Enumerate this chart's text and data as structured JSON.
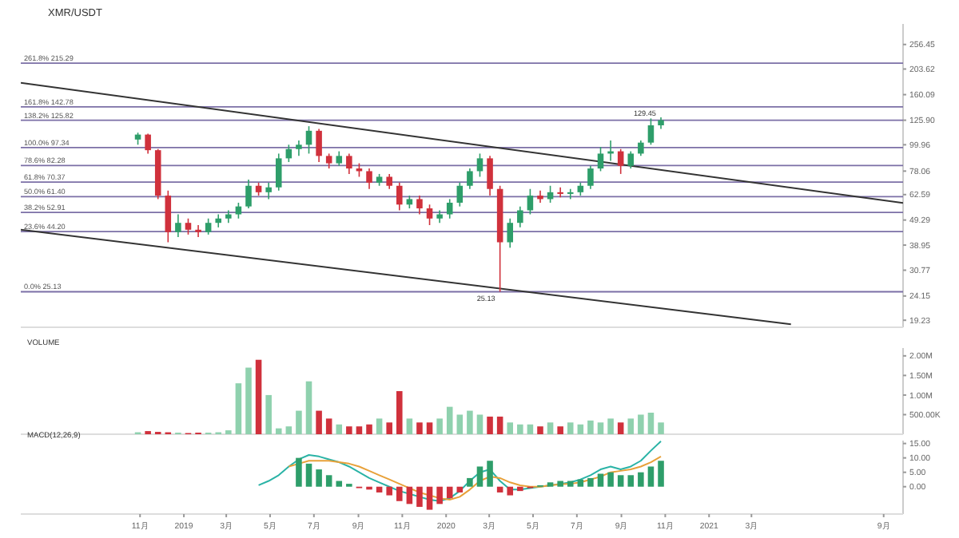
{
  "chart_data": [
    {
      "type": "candlestick",
      "title": "XMR/USDT",
      "log": true,
      "ylim": [
        18,
        311
      ],
      "xlim": [
        "2018-05-19",
        "2021-09-28"
      ],
      "tick_labels": "y",
      "yticks": [
        19.23,
        24.15,
        30.77,
        38.95,
        49.29,
        62.59,
        78.06,
        99.96,
        {
          "value": 125.9,
          "label": "125.90"
        },
        160.09,
        203.62,
        256.45
      ],
      "x": [
        "2018-10-29",
        "2018-11-12",
        "2018-11-26",
        "2018-12-10",
        "2018-12-24",
        "2019-01-07",
        "2019-01-21",
        "2019-02-04",
        "2019-02-18",
        "2019-03-04",
        "2019-03-18",
        "2019-04-01",
        "2019-04-15",
        "2019-04-29",
        "2019-05-13",
        "2019-05-27",
        "2019-06-10",
        "2019-06-24",
        "2019-07-08",
        "2019-07-22",
        "2019-08-05",
        "2019-08-19",
        "2019-09-02",
        "2019-09-16",
        "2019-09-30",
        "2019-10-14",
        "2019-10-28",
        "2019-11-11",
        "2019-11-25",
        "2019-12-09",
        "2019-12-23",
        "2020-01-06",
        "2020-01-20",
        "2020-02-03",
        "2020-02-17",
        "2020-03-02",
        "2020-03-16",
        "2020-03-30",
        "2020-04-13",
        "2020-04-27",
        "2020-05-11",
        "2020-05-25",
        "2020-06-08",
        "2020-06-22",
        "2020-07-06",
        "2020-07-20",
        "2020-08-03",
        "2020-08-17",
        "2020-08-31",
        "2020-09-14",
        "2020-09-28",
        "2020-10-12",
        "2020-10-26"
      ],
      "ohlc": [
        [
          105,
          112,
          100,
          110
        ],
        [
          110,
          111,
          92,
          95
        ],
        [
          95,
          96,
          60,
          62
        ],
        [
          62,
          65,
          40,
          44
        ],
        [
          44,
          52,
          42,
          48
        ],
        [
          48,
          50,
          43,
          45
        ],
        [
          45,
          47,
          42,
          44
        ],
        [
          44,
          50,
          43,
          48
        ],
        [
          48,
          52,
          46,
          50
        ],
        [
          50,
          54,
          48,
          52
        ],
        [
          52,
          58,
          50,
          56
        ],
        [
          56,
          72,
          55,
          68
        ],
        [
          68,
          70,
          62,
          64
        ],
        [
          64,
          70,
          60,
          67
        ],
        [
          67,
          92,
          65,
          88
        ],
        [
          88,
          100,
          85,
          96
        ],
        [
          96,
          104,
          90,
          100
        ],
        [
          100,
          119,
          92,
          114
        ],
        [
          114,
          116,
          85,
          90
        ],
        [
          90,
          92,
          80,
          84
        ],
        [
          84,
          94,
          82,
          90
        ],
        [
          90,
          92,
          76,
          80
        ],
        [
          80,
          84,
          74,
          78
        ],
        [
          78,
          80,
          66,
          70
        ],
        [
          70,
          76,
          68,
          74
        ],
        [
          74,
          76,
          66,
          68
        ],
        [
          68,
          70,
          54,
          57
        ],
        [
          57,
          62,
          55,
          60
        ],
        [
          60,
          62,
          52,
          55
        ],
        [
          55,
          57,
          47,
          50
        ],
        [
          50,
          54,
          48,
          52
        ],
        [
          52,
          60,
          50,
          58
        ],
        [
          58,
          70,
          56,
          68
        ],
        [
          68,
          80,
          66,
          78
        ],
        [
          78,
          92,
          74,
          88
        ],
        [
          88,
          90,
          62,
          66
        ],
        [
          66,
          68,
          25.13,
          40
        ],
        [
          40,
          50,
          38,
          48
        ],
        [
          48,
          56,
          46,
          54
        ],
        [
          54,
          66,
          52,
          62
        ],
        [
          62,
          65,
          58,
          60
        ],
        [
          60,
          68,
          58,
          64
        ],
        [
          64,
          67,
          61,
          63
        ],
        [
          63,
          66,
          60,
          64
        ],
        [
          64,
          70,
          62,
          68
        ],
        [
          68,
          82,
          66,
          80
        ],
        [
          80,
          98,
          78,
          92
        ],
        [
          92,
          104,
          86,
          94
        ],
        [
          94,
          96,
          76,
          82
        ],
        [
          82,
          94,
          80,
          92
        ],
        [
          92,
          104,
          90,
          102
        ],
        [
          102,
          128,
          100,
          120
        ],
        [
          120,
          129.45,
          116,
          125.9
        ]
      ],
      "colors": [
        "#2e9e6a",
        "#d0313c",
        "#d0313c",
        "#d0313c",
        "#2e9e6a",
        "#d0313c",
        "#d0313c",
        "#2e9e6a",
        "#2e9e6a",
        "#2e9e6a",
        "#2e9e6a",
        "#2e9e6a",
        "#d0313c",
        "#2e9e6a",
        "#2e9e6a",
        "#2e9e6a",
        "#2e9e6a",
        "#2e9e6a",
        "#d0313c",
        "#d0313c",
        "#2e9e6a",
        "#d0313c",
        "#d0313c",
        "#d0313c",
        "#2e9e6a",
        "#d0313c",
        "#d0313c",
        "#2e9e6a",
        "#d0313c",
        "#d0313c",
        "#2e9e6a",
        "#2e9e6a",
        "#2e9e6a",
        "#2e9e6a",
        "#2e9e6a",
        "#d0313c",
        "#d0313c",
        "#2e9e6a",
        "#2e9e6a",
        "#2e9e6a",
        "#d0313c",
        "#2e9e6a",
        "#d0313c",
        "#2e9e6a",
        "#2e9e6a",
        "#2e9e6a",
        "#2e9e6a",
        "#2e9e6a",
        "#d0313c",
        "#2e9e6a",
        "#2e9e6a",
        "#2e9e6a",
        "#2e9e6a"
      ],
      "series": [
        {
          "type": "line",
          "x": [
            "2018-05-19",
            "2021-09-28"
          ],
          "values": [
            179,
            57.9
          ],
          "color": "#333333"
        },
        {
          "type": "line",
          "x": [
            "2018-05-19",
            "2021-04-25"
          ],
          "values": [
            45,
            18.5
          ],
          "color": "#333333"
        }
      ],
      "ref_lines": [
        {
          "axis": "y",
          "value": 215.29,
          "label": "261.8% 215.29",
          "color": "#7b6fa6"
        },
        {
          "axis": "y",
          "value": 142.78,
          "label": "161.8% 142.78",
          "color": "#7b6fa6"
        },
        {
          "axis": "y",
          "value": 125.82,
          "label": "138.2% 125.82",
          "color": "#7b6fa6"
        },
        {
          "axis": "y",
          "value": 97.34,
          "label": "100.0% 97.34",
          "color": "#7b6fa6"
        },
        {
          "axis": "y",
          "value": 82.28,
          "label": "78.6% 82.28",
          "color": "#7b6fa6"
        },
        {
          "axis": "y",
          "value": 70.37,
          "label": "61.8% 70.37",
          "color": "#7b6fa6"
        },
        {
          "axis": "y",
          "value": 61.4,
          "label": "50.0% 61.40",
          "color": "#7b6fa6"
        },
        {
          "axis": "y",
          "value": 52.91,
          "label": "38.2% 52.91",
          "color": "#7b6fa6"
        },
        {
          "axis": "y",
          "value": 44.2,
          "label": "23.6% 44.20",
          "color": "#7b6fa6"
        },
        {
          "axis": "y",
          "value": 25.13,
          "label": "0.0% 25.13",
          "color": "#7b6fa6"
        }
      ],
      "annotations": [
        {
          "text": "129.45",
          "x": "2020-10-26",
          "y": 129.45
        },
        {
          "text": "25.13",
          "x": "2020-03-16",
          "y": 25.13
        }
      ]
    },
    {
      "type": "bar",
      "title": "VOLUME",
      "xlim": [
        "2018-05-19",
        "2021-09-28"
      ],
      "tick_labels": "y",
      "ylim": [
        0,
        2200000
      ],
      "yticks": [
        {
          "value": 500000,
          "label": "500.00K"
        },
        {
          "value": 1000000,
          "label": "1.00M"
        },
        {
          "value": 1500000,
          "label": "1.50M"
        },
        {
          "value": 2000000,
          "label": "2.00M"
        }
      ],
      "x": [
        "2018-10-29",
        "2018-11-12",
        "2018-11-26",
        "2018-12-10",
        "2018-12-24",
        "2019-01-07",
        "2019-01-21",
        "2019-02-04",
        "2019-02-18",
        "2019-03-04",
        "2019-03-18",
        "2019-04-01",
        "2019-04-15",
        "2019-04-29",
        "2019-05-13",
        "2019-05-27",
        "2019-06-10",
        "2019-06-24",
        "2019-07-08",
        "2019-07-22",
        "2019-08-05",
        "2019-08-19",
        "2019-09-02",
        "2019-09-16",
        "2019-09-30",
        "2019-10-14",
        "2019-10-28",
        "2019-11-11",
        "2019-11-25",
        "2019-12-09",
        "2019-12-23",
        "2020-01-06",
        "2020-01-20",
        "2020-02-03",
        "2020-02-17",
        "2020-03-02",
        "2020-03-16",
        "2020-03-30",
        "2020-04-13",
        "2020-04-27",
        "2020-05-11",
        "2020-05-25",
        "2020-06-08",
        "2020-06-22",
        "2020-07-06",
        "2020-07-20",
        "2020-08-03",
        "2020-08-17",
        "2020-08-31",
        "2020-09-14",
        "2020-09-28",
        "2020-10-12",
        "2020-10-26"
      ],
      "values": [
        50000,
        80000,
        60000,
        50000,
        40000,
        30000,
        40000,
        40000,
        50000,
        100000,
        1300000,
        1700000,
        1900000,
        1000000,
        150000,
        200000,
        600000,
        1350000,
        600000,
        400000,
        250000,
        200000,
        200000,
        250000,
        400000,
        300000,
        1100000,
        400000,
        300000,
        300000,
        400000,
        700000,
        500000,
        600000,
        500000,
        450000,
        450000,
        300000,
        250000,
        250000,
        200000,
        300000,
        200000,
        300000,
        250000,
        350000,
        300000,
        400000,
        300000,
        400000,
        500000,
        550000,
        300000
      ],
      "colors": [
        "#8fd1ae",
        "#d0313c",
        "#d0313c",
        "#d0313c",
        "#8fd1ae",
        "#d0313c",
        "#d0313c",
        "#8fd1ae",
        "#8fd1ae",
        "#8fd1ae",
        "#8fd1ae",
        "#8fd1ae",
        "#d0313c",
        "#8fd1ae",
        "#8fd1ae",
        "#8fd1ae",
        "#8fd1ae",
        "#8fd1ae",
        "#d0313c",
        "#d0313c",
        "#8fd1ae",
        "#d0313c",
        "#d0313c",
        "#d0313c",
        "#8fd1ae",
        "#d0313c",
        "#d0313c",
        "#8fd1ae",
        "#d0313c",
        "#d0313c",
        "#8fd1ae",
        "#8fd1ae",
        "#8fd1ae",
        "#8fd1ae",
        "#8fd1ae",
        "#d0313c",
        "#d0313c",
        "#8fd1ae",
        "#8fd1ae",
        "#8fd1ae",
        "#d0313c",
        "#8fd1ae",
        "#d0313c",
        "#8fd1ae",
        "#8fd1ae",
        "#8fd1ae",
        "#8fd1ae",
        "#8fd1ae",
        "#d0313c",
        "#8fd1ae",
        "#8fd1ae",
        "#8fd1ae",
        "#8fd1ae"
      ]
    },
    {
      "type": "bar",
      "title": "MACD(12,26,9)",
      "xlim": [
        "2018-05-19",
        "2021-09-28"
      ],
      "ylim": [
        -9.5,
        16
      ],
      "yticks": [
        {
          "value": 0,
          "label": "0.00"
        },
        {
          "value": 5,
          "label": "5.00"
        },
        {
          "value": 10,
          "label": "10.00"
        },
        {
          "value": 15,
          "label": "15.00"
        }
      ],
      "xticks": [
        {
          "value": "2018-11-01",
          "label": "11月"
        },
        {
          "value": "2019-01-01",
          "label": "2019"
        },
        {
          "value": "2019-03-01",
          "label": "3月"
        },
        {
          "value": "2019-05-01",
          "label": "5月"
        },
        {
          "value": "2019-07-01",
          "label": "7月"
        },
        {
          "value": "2019-09-01",
          "label": "9月"
        },
        {
          "value": "2019-11-01",
          "label": "11月"
        },
        {
          "value": "2020-01-01",
          "label": "2020"
        },
        {
          "value": "2020-03-01",
          "label": "3月"
        },
        {
          "value": "2020-05-01",
          "label": "5月"
        },
        {
          "value": "2020-07-01",
          "label": "7月"
        },
        {
          "value": "2020-09-01",
          "label": "9月"
        },
        {
          "value": "2020-11-01",
          "label": "11月"
        },
        {
          "value": "2021-01-01",
          "label": "2021"
        },
        {
          "value": "2021-03-01",
          "label": "3月"
        },
        {
          "value": "2021-09-01",
          "label": "9月"
        }
      ],
      "x": [
        "2019-04-15",
        "2019-04-29",
        "2019-05-13",
        "2019-05-27",
        "2019-06-10",
        "2019-06-24",
        "2019-07-08",
        "2019-07-22",
        "2019-08-05",
        "2019-08-19",
        "2019-09-02",
        "2019-09-16",
        "2019-09-30",
        "2019-10-14",
        "2019-10-28",
        "2019-11-11",
        "2019-11-25",
        "2019-12-09",
        "2019-12-23",
        "2020-01-06",
        "2020-01-20",
        "2020-02-03",
        "2020-02-17",
        "2020-03-02",
        "2020-03-16",
        "2020-03-30",
        "2020-04-13",
        "2020-04-27",
        "2020-05-11",
        "2020-05-25",
        "2020-06-08",
        "2020-06-22",
        "2020-07-06",
        "2020-07-20",
        "2020-08-03",
        "2020-08-17",
        "2020-08-31",
        "2020-09-14",
        "2020-09-28",
        "2020-10-12",
        "2020-10-26"
      ],
      "series": [
        {
          "type": "bar",
          "values": [
            null,
            null,
            null,
            null,
            10,
            8,
            6,
            4,
            2,
            1,
            -0.5,
            -1,
            -2,
            -3,
            -5,
            -6,
            -7,
            -8,
            -6,
            -4,
            -2,
            3,
            7,
            9,
            -2,
            -3,
            -1.5,
            -0.5,
            0.5,
            1.5,
            2,
            2,
            2.5,
            3,
            4.5,
            5,
            4,
            4,
            5,
            7,
            9
          ],
          "colors": [
            null,
            null,
            null,
            null,
            "#2e9e6a",
            "#2e9e6a",
            "#2e9e6a",
            "#2e9e6a",
            "#2e9e6a",
            "#2e9e6a",
            "#d0313c",
            "#d0313c",
            "#d0313c",
            "#d0313c",
            "#d0313c",
            "#d0313c",
            "#d0313c",
            "#d0313c",
            "#d0313c",
            "#d0313c",
            "#d0313c",
            "#2e9e6a",
            "#2e9e6a",
            "#2e9e6a",
            "#d0313c",
            "#d0313c",
            "#d0313c",
            "#d0313c",
            "#2e9e6a",
            "#2e9e6a",
            "#2e9e6a",
            "#2e9e6a",
            "#2e9e6a",
            "#2e9e6a",
            "#2e9e6a",
            "#2e9e6a",
            "#2e9e6a",
            "#2e9e6a",
            "#2e9e6a",
            "#2e9e6a",
            "#2e9e6a"
          ]
        },
        {
          "type": "line",
          "color": "#2ab3a6",
          "values": [
            0.5,
            2,
            4,
            7,
            9.5,
            11,
            10.5,
            9.5,
            8.5,
            7,
            5,
            3,
            1.5,
            0,
            -1.5,
            -2.5,
            -3.5,
            -4.5,
            -5,
            -4,
            -1.5,
            2,
            5,
            6,
            2,
            -1,
            -1,
            -0.5,
            0,
            0.5,
            1,
            1.5,
            2.5,
            4,
            6,
            7,
            6,
            7,
            9,
            12.5,
            15.8
          ]
        },
        {
          "type": "line",
          "color": "#e8a13a",
          "values": [
            null,
            null,
            null,
            7,
            8,
            9,
            9,
            9,
            8.5,
            8,
            7,
            5.5,
            4,
            2.5,
            1,
            -0.5,
            -2,
            -3,
            -4,
            -4.5,
            -3.5,
            -1,
            2,
            3.5,
            3,
            1.5,
            0.5,
            0,
            0,
            0.5,
            0.8,
            1,
            1.5,
            2.5,
            3.5,
            5,
            5.5,
            6,
            7,
            8.5,
            10.5
          ]
        }
      ]
    }
  ]
}
